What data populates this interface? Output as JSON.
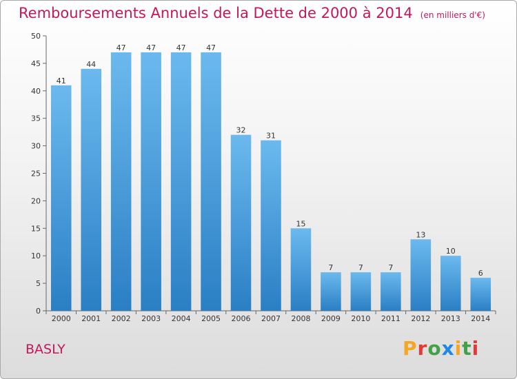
{
  "header": {
    "title": "Remboursements Annuels de la Dette de 2000 à 2014",
    "subtitle": "(en milliers d'€)"
  },
  "footer": {
    "commune": "BASLY",
    "logo_text": "Proxiti",
    "logo_letter_colors": [
      "#f5a623",
      "#e53935",
      "#43a047",
      "#1e88e5",
      "#f5a623",
      "#43a047",
      "#e53935"
    ]
  },
  "colors": {
    "title": "#c2185b",
    "bar_top": "#6bb9ee",
    "bar_bottom": "#2a7fc4"
  },
  "chart_data": {
    "type": "bar",
    "title": "Remboursements Annuels de la Dette de 2000 à 2014",
    "categories": [
      "2000",
      "2001",
      "2002",
      "2003",
      "2004",
      "2005",
      "2006",
      "2007",
      "2008",
      "2009",
      "2010",
      "2011",
      "2012",
      "2013",
      "2014"
    ],
    "values": [
      41,
      44,
      47,
      47,
      47,
      47,
      32,
      31,
      15,
      7,
      7,
      7,
      13,
      10,
      6
    ],
    "ylim": [
      0,
      50
    ],
    "yticks": [
      0,
      5,
      10,
      15,
      20,
      25,
      30,
      35,
      40,
      45,
      50
    ],
    "grid": false,
    "data_labels": true
  }
}
